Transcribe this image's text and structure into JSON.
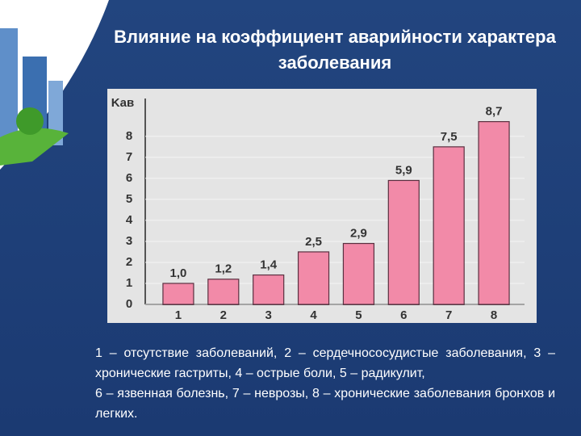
{
  "chart_data": {
    "type": "bar",
    "title": "Влияние на коэффициент аварийности характера заболевания",
    "y_label": "Kав",
    "categories": [
      "1",
      "2",
      "3",
      "4",
      "5",
      "6",
      "7",
      "8"
    ],
    "values": [
      1.0,
      1.2,
      1.4,
      2.5,
      2.9,
      5.9,
      7.5,
      8.7
    ],
    "value_labels": [
      "1,0",
      "1,2",
      "1,4",
      "2,5",
      "2,9",
      "5,9",
      "7,5",
      "8,7"
    ],
    "color": "#f28aa8",
    "ylim": [
      0,
      9.8
    ],
    "yticks": [
      0,
      1,
      2,
      3,
      4,
      5,
      6,
      7,
      8
    ],
    "grid": true,
    "annotations": [
      "1 – отсутствие заболеваний, 2 – сердечнососудистые заболевания, 3 – хронические гастриты, 4 – острые боли, 5 – радикулит,",
      "6 – язвенная болезнь, 7 – неврозы, 8 – хронические заболевания бронхов и легких."
    ]
  }
}
